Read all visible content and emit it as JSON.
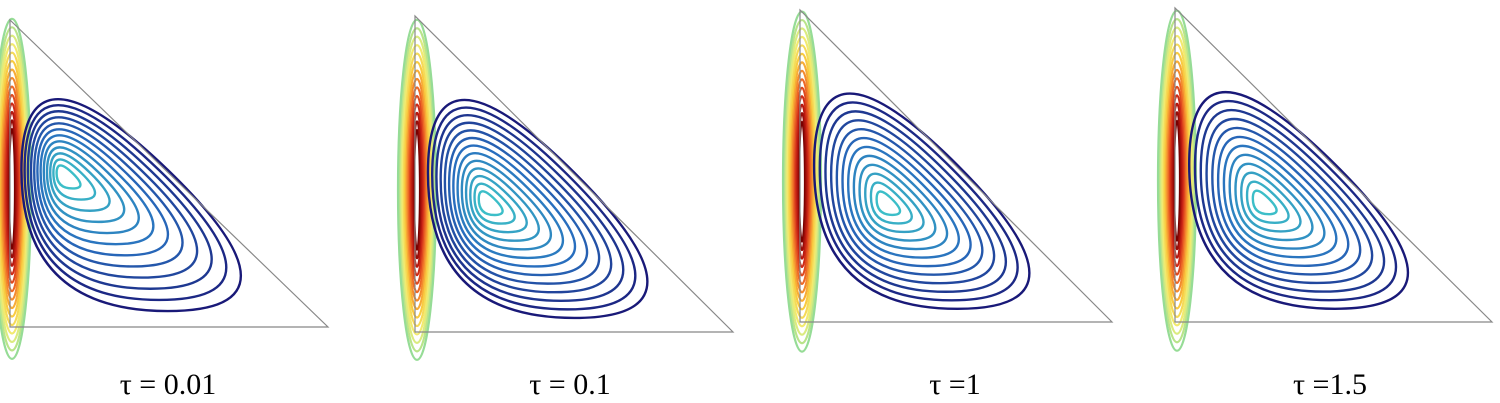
{
  "panels": [
    {
      "label": "τ = 0.01"
    },
    {
      "label": "τ = 0.1"
    },
    {
      "label": "τ =1"
    },
    {
      "label": "τ =1.5"
    }
  ]
}
